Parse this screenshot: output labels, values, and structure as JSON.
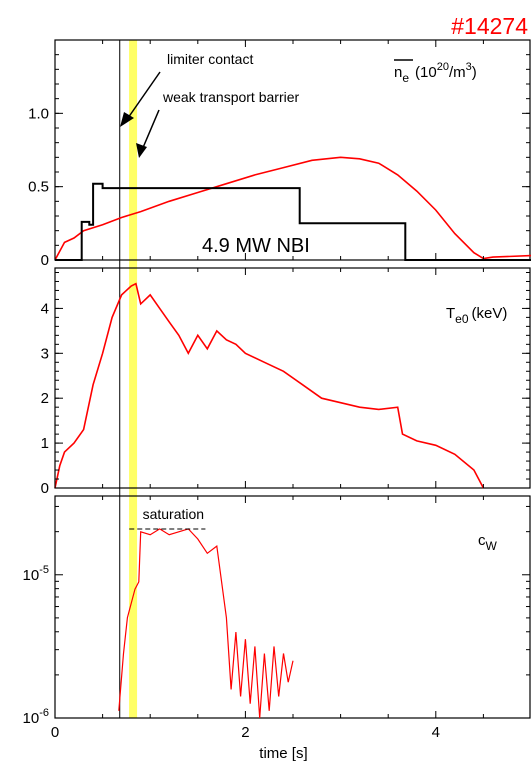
{
  "chart_data": {
    "shot_number": "#14274",
    "shot_color": "#ff0000",
    "trace_color": "#ff0000",
    "nbi_color": "#000000",
    "highlight_color": "#ffff66",
    "x_axis": {
      "label": "time [s]",
      "lim": [
        0,
        5
      ],
      "ticks": [
        0,
        2,
        4
      ],
      "tick_labels": [
        "0",
        "2",
        "4"
      ]
    },
    "markers": {
      "limiter_contact_time": 0.68,
      "weak_transport_barrier_time": 0.82,
      "limiter_label": "limiter contact",
      "barrier_label": "weak transport barrier"
    },
    "panels": [
      {
        "id": "ne",
        "type": "line",
        "label_main": "n",
        "label_sub": "e",
        "label_unit_pre": "(10",
        "label_unit_sup": "20",
        "label_unit_mid": "/m",
        "label_unit_sup2": "3",
        "label_unit_post": ")",
        "ylim": [
          0,
          1.5
        ],
        "yticks": [
          0,
          0.5,
          1.0
        ],
        "ytick_labels": [
          "0",
          "0.5",
          "1.0"
        ],
        "nbi_label": "4.9 MW NBI",
        "series": [
          {
            "name": "n_e",
            "x": [
              0.0,
              0.1,
              0.2,
              0.3,
              0.5,
              0.7,
              0.9,
              1.2,
              1.5,
              1.8,
              2.1,
              2.4,
              2.7,
              3.0,
              3.2,
              3.4,
              3.6,
              3.8,
              4.0,
              4.2,
              4.4,
              4.5,
              4.6,
              5.0
            ],
            "y": [
              0.0,
              0.12,
              0.15,
              0.2,
              0.24,
              0.29,
              0.33,
              0.4,
              0.46,
              0.52,
              0.58,
              0.63,
              0.68,
              0.7,
              0.69,
              0.66,
              0.58,
              0.47,
              0.34,
              0.18,
              0.05,
              0.01,
              0.02,
              0.03
            ]
          },
          {
            "name": "NBI",
            "x": [
              0.0,
              0.28,
              0.28,
              0.36,
              0.36,
              0.4,
              0.4,
              0.5,
              0.5,
              2.57,
              2.57,
              3.68,
              3.68,
              5.0
            ],
            "y": [
              0.0,
              0.0,
              0.26,
              0.26,
              0.24,
              0.24,
              0.52,
              0.52,
              0.49,
              0.49,
              0.25,
              0.25,
              0.0,
              0.0
            ]
          }
        ]
      },
      {
        "id": "te0",
        "type": "line",
        "label_main": "T",
        "label_sub": "e0",
        "label_unit": "(keV)",
        "ylim": [
          0,
          4.9
        ],
        "yticks": [
          0,
          1,
          2,
          3,
          4
        ],
        "ytick_labels": [
          "0",
          "1",
          "2",
          "3",
          "4"
        ],
        "series": [
          {
            "name": "T_e0",
            "x": [
              0.0,
              0.05,
              0.1,
              0.2,
              0.3,
              0.4,
              0.5,
              0.6,
              0.7,
              0.8,
              0.85,
              0.9,
              1.0,
              1.1,
              1.2,
              1.3,
              1.4,
              1.5,
              1.6,
              1.7,
              1.8,
              1.9,
              2.0,
              2.2,
              2.4,
              2.6,
              2.8,
              3.0,
              3.2,
              3.4,
              3.6,
              3.65,
              3.8,
              4.0,
              4.2,
              4.4,
              4.5
            ],
            "y": [
              0.0,
              0.5,
              0.8,
              1.0,
              1.3,
              2.3,
              3.0,
              3.8,
              4.3,
              4.5,
              4.55,
              4.1,
              4.3,
              4.0,
              3.7,
              3.4,
              3.0,
              3.4,
              3.1,
              3.5,
              3.3,
              3.2,
              3.0,
              2.8,
              2.6,
              2.3,
              2.0,
              1.9,
              1.8,
              1.75,
              1.8,
              1.2,
              1.05,
              0.95,
              0.75,
              0.4,
              0.0
            ]
          }
        ]
      },
      {
        "id": "cw",
        "type": "line",
        "scale": "log",
        "label_main": "c",
        "label_sub": "W",
        "ylim_log10": [
          -6,
          -4.45
        ],
        "yticks_log10": [
          -6,
          -5
        ],
        "ytick_labels": [
          "10-6",
          "10-5"
        ],
        "saturation_label": "saturation",
        "saturation_log10": -4.68,
        "saturation_x": [
          0.78,
          1.58
        ],
        "series": [
          {
            "name": "c_W",
            "x": [
              0.67,
              0.72,
              0.76,
              0.8,
              0.84,
              0.88,
              0.9,
              1.0,
              1.1,
              1.2,
              1.3,
              1.4,
              1.5,
              1.6,
              1.7,
              1.8,
              1.85,
              1.9,
              1.95,
              2.0,
              2.05,
              2.1,
              2.15,
              2.2,
              2.25,
              2.3,
              2.35,
              2.4,
              2.45,
              2.5
            ],
            "y_log10": [
              -5.95,
              -5.55,
              -5.3,
              -5.2,
              -5.1,
              -5.05,
              -4.7,
              -4.72,
              -4.68,
              -4.72,
              -4.7,
              -4.68,
              -4.75,
              -4.85,
              -4.8,
              -5.3,
              -5.8,
              -5.4,
              -5.85,
              -5.45,
              -5.9,
              -5.5,
              -6.0,
              -5.55,
              -5.95,
              -5.5,
              -5.85,
              -5.55,
              -5.75,
              -5.6
            ]
          }
        ]
      }
    ]
  }
}
